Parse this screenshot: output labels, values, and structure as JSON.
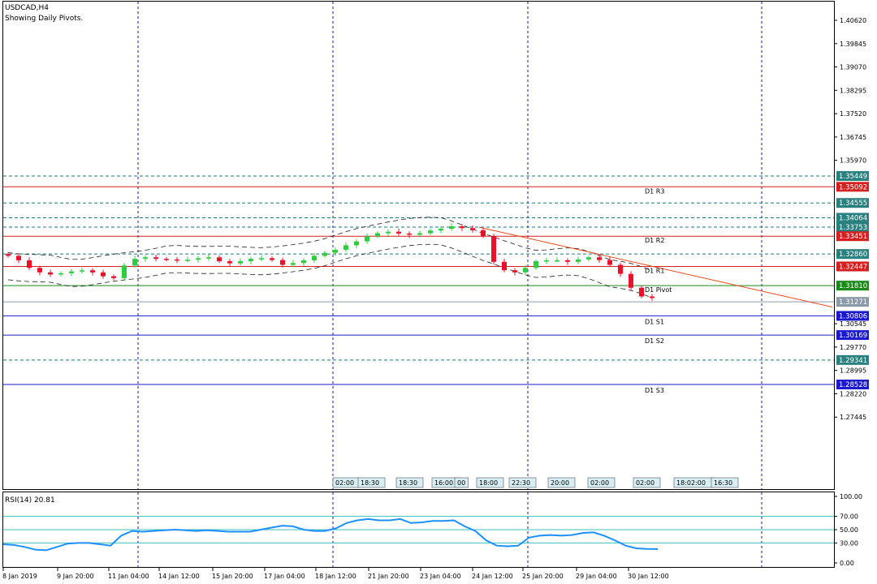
{
  "header": {
    "symbol": "USDCAD,H4",
    "note": "Showing Daily Pivots."
  },
  "rsi": {
    "label": "RSI(14) 20.81",
    "levels": [
      "100.00",
      "70.00",
      "50.00",
      "30.00",
      "0.00"
    ]
  },
  "colors": {
    "bull": "#2ecc40",
    "bear": "#e8132b",
    "pivot": "#1b8a1b",
    "resistance": "#d42020",
    "support": "#1a1acc",
    "fib": "#1e7a7a",
    "grid": "#1a1acc",
    "rsi_line": "#1e90ff",
    "trend": "#e8491d"
  },
  "chart_data": [
    {
      "type": "candlestick",
      "title": "USDCAD,H4",
      "subtitle": "Showing Daily Pivots.",
      "ylim": [
        1.27,
        1.4125
      ],
      "y_ticks": [
        "1.40620",
        "1.39845",
        "1.39070",
        "1.38295",
        "1.37520",
        "1.36745",
        "1.35970",
        "1.30545",
        "1.29770",
        "1.28995",
        "1.28220",
        "1.27445"
      ],
      "x_ticks": [
        "8 Jan 2019",
        "9 Jan 20:00",
        "11 Jan 04:00",
        "14 Jan 12:00",
        "15 Jan 20:00",
        "17 Jan 04:00",
        "18 Jan 12:00",
        "21 Jan 20:00",
        "23 Jan 04:00",
        "24 Jan 12:00",
        "25 Jan 20:00",
        "29 Jan 04:00",
        "30 Jan 12:00"
      ],
      "close_path": [
        1.328,
        1.3265,
        1.324,
        1.3225,
        1.3218,
        1.3222,
        1.3228,
        1.3232,
        1.3225,
        1.3212,
        1.3206,
        1.3248,
        1.327,
        1.3275,
        1.327,
        1.3268,
        1.3265,
        1.3267,
        1.3272,
        1.3275,
        1.3262,
        1.3255,
        1.3262,
        1.327,
        1.3272,
        1.3266,
        1.325,
        1.3256,
        1.3265,
        1.328,
        1.329,
        1.33,
        1.3315,
        1.3328,
        1.3345,
        1.3355,
        1.336,
        1.3354,
        1.335,
        1.3355,
        1.3364,
        1.337,
        1.3378,
        1.3372,
        1.3365,
        1.3345,
        1.326,
        1.3232,
        1.3225,
        1.324,
        1.3262,
        1.3265,
        1.3265,
        1.326,
        1.3268,
        1.3275,
        1.3266,
        1.325,
        1.322,
        1.3174,
        1.3145,
        1.314
      ],
      "pivot_lines": [
        {
          "name": "D1 R3",
          "value": 1.35092,
          "tag": "1.35092",
          "kind": "resistance"
        },
        {
          "name": "D1 R2",
          "value": 1.33451,
          "tag": "1.33451",
          "kind": "resistance"
        },
        {
          "name": "D1 R1",
          "value": 1.32447,
          "tag": "1.32447",
          "kind": "resistance"
        },
        {
          "name": "D1 Pivot",
          "value": 1.3181,
          "tag": "1.31810",
          "kind": "pivot"
        },
        {
          "name": "D1 S1",
          "value": 1.30806,
          "tag": "1.30806",
          "kind": "support"
        },
        {
          "name": "D1 S2",
          "value": 1.30169,
          "tag": "1.30169",
          "kind": "support"
        },
        {
          "name": "D1 S3",
          "value": 1.28528,
          "tag": "1.28528",
          "kind": "support"
        }
      ],
      "level_lines": [
        {
          "value": 1.35449,
          "tag": "1.35449"
        },
        {
          "value": 1.34555,
          "tag": "1.34555"
        },
        {
          "value": 1.34064,
          "tag": "1.34064"
        },
        {
          "value": 1.33753,
          "tag": "1.33753"
        },
        {
          "value": 1.3286,
          "tag": "1.32860"
        },
        {
          "value": 1.29341,
          "tag": "1.29341"
        }
      ],
      "current_price": {
        "value": 1.31271,
        "tag": "1.31271"
      },
      "trendline": [
        [
          1.3375,
          1.311
        ]
      ],
      "time_markers": [
        "02:00",
        "18:30",
        "18:30",
        "16:00",
        "00",
        "18:00",
        "22:30",
        "20:00",
        "02:00",
        "02:00",
        "18:02:00",
        "16:30"
      ]
    },
    {
      "type": "line",
      "title": "RSI(14) 20.81",
      "ylim": [
        0,
        100
      ],
      "y_ticks": [
        "100.00",
        "70.00",
        "50.00",
        "30.00",
        "0.00"
      ],
      "values": [
        28,
        27,
        24,
        20,
        19,
        24,
        29,
        30,
        30,
        28,
        26,
        41,
        48,
        47,
        48,
        49,
        50,
        49,
        48,
        49,
        48,
        47,
        47,
        47,
        50,
        53,
        56,
        55,
        50,
        48,
        48,
        52,
        60,
        64,
        66,
        64,
        64,
        66,
        60,
        61,
        63,
        63,
        64,
        55,
        48,
        34,
        26,
        25,
        26,
        38,
        41,
        42,
        41,
        42,
        45,
        46,
        41,
        34,
        26,
        22,
        21,
        20.81
      ]
    }
  ]
}
